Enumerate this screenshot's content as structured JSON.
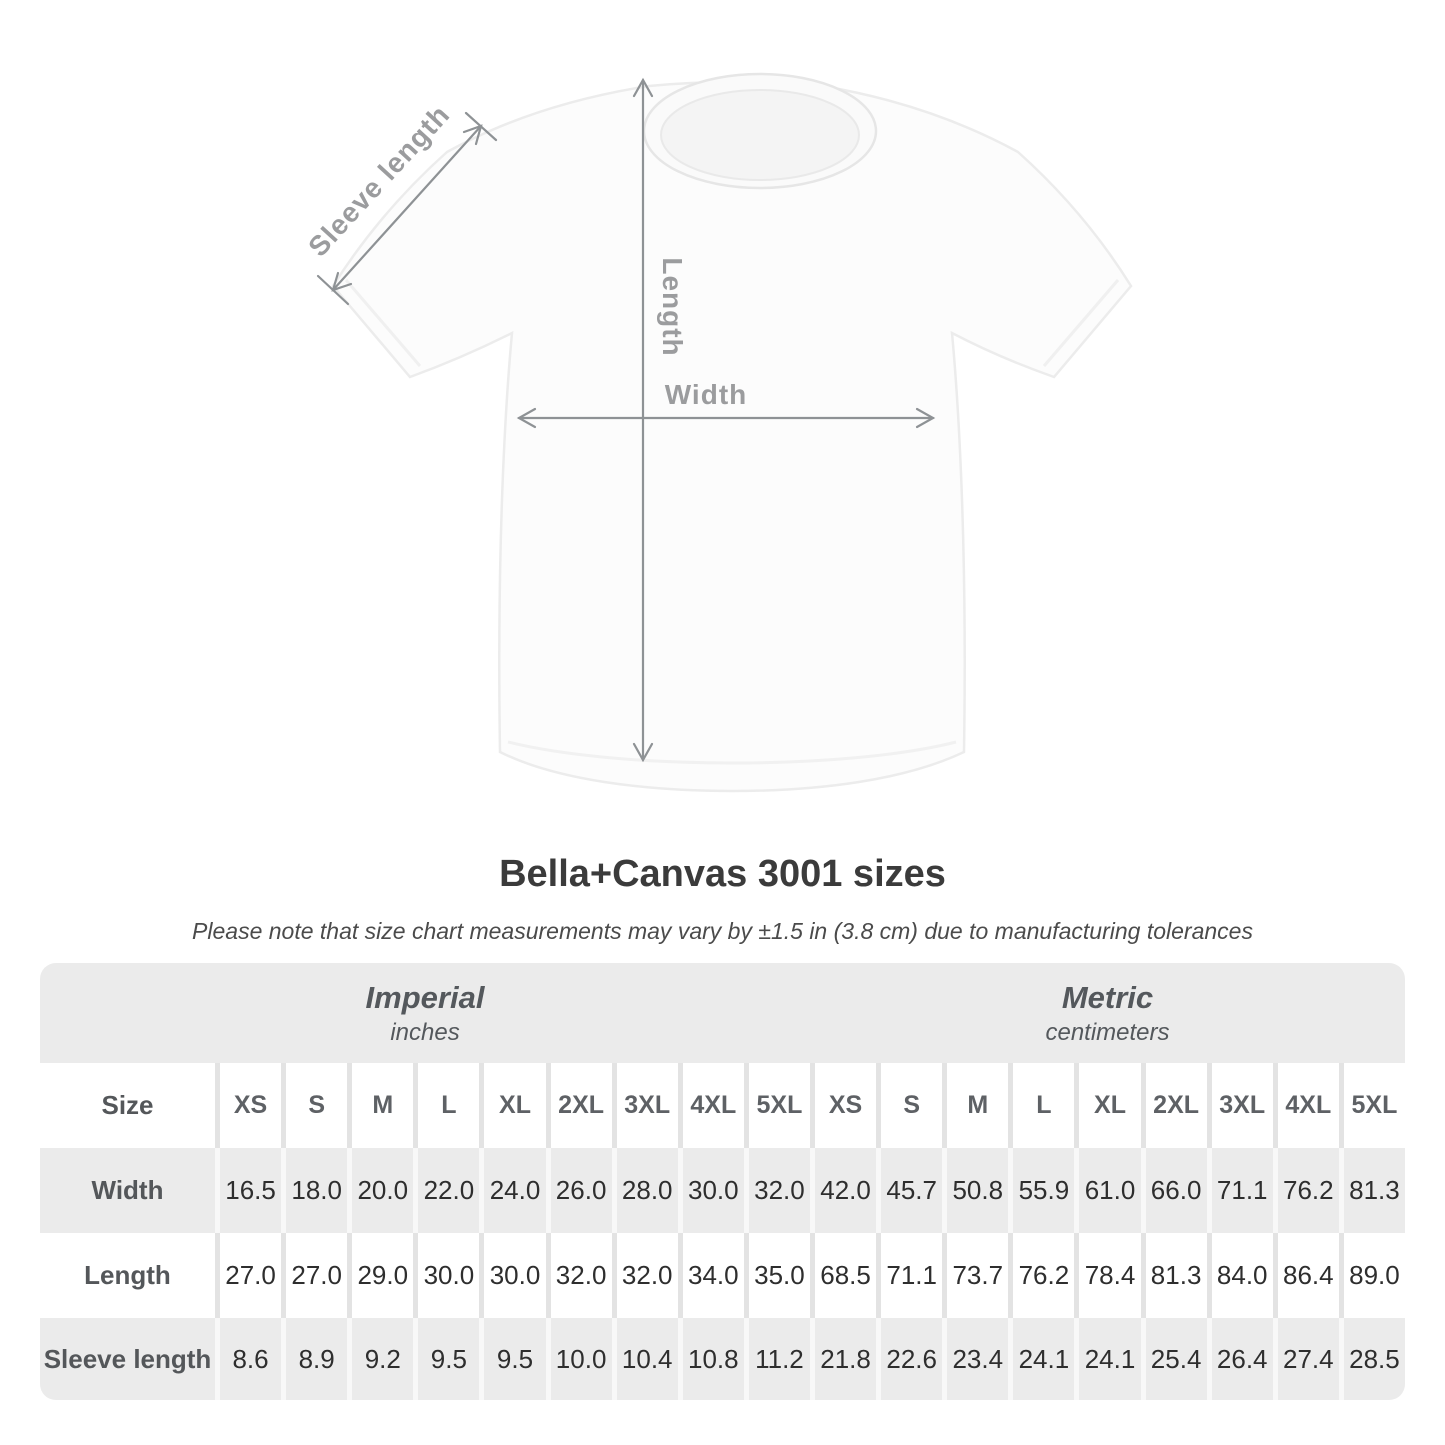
{
  "illustration": {
    "sleeve_label": "Sleeve length",
    "length_label": "Length",
    "width_label": "Width",
    "arrow_color": "#8e9295",
    "label_color": "#9b9c9e"
  },
  "header": {
    "title": "Bella+Canvas 3001 sizes",
    "note": "Please note that size chart measurements may vary by ±1.5 in (3.8 cm) due to manufacturing tolerances"
  },
  "table": {
    "imperial_label": "Imperial",
    "imperial_sub": "inches",
    "metric_label": "Metric",
    "metric_sub": "centimeters",
    "size_label": "Size",
    "sizes": [
      "XS",
      "S",
      "M",
      "L",
      "XL",
      "2XL",
      "3XL",
      "4XL",
      "5XL"
    ],
    "rows": [
      {
        "label": "Width",
        "imperial": [
          "16.5",
          "18.0",
          "20.0",
          "22.0",
          "24.0",
          "26.0",
          "28.0",
          "30.0",
          "32.0"
        ],
        "metric": [
          "42.0",
          "45.7",
          "50.8",
          "55.9",
          "61.0",
          "66.0",
          "71.1",
          "76.2",
          "81.3"
        ]
      },
      {
        "label": "Length",
        "imperial": [
          "27.0",
          "27.0",
          "29.0",
          "30.0",
          "30.0",
          "32.0",
          "32.0",
          "34.0",
          "35.0"
        ],
        "metric": [
          "68.5",
          "71.1",
          "73.7",
          "76.2",
          "78.4",
          "81.3",
          "84.0",
          "86.4",
          "89.0"
        ]
      },
      {
        "label": "Sleeve length",
        "imperial": [
          "8.6",
          "8.9",
          "9.2",
          "9.5",
          "9.5",
          "10.0",
          "10.4",
          "10.8",
          "11.2"
        ],
        "metric": [
          "21.8",
          "22.6",
          "23.4",
          "24.1",
          "24.1",
          "25.4",
          "26.4",
          "27.4",
          "28.5"
        ]
      }
    ]
  },
  "chart_data": {
    "type": "table",
    "title": "Bella+Canvas 3001 sizes",
    "note": "Please note that size chart measurements may vary by ±1.5 in (3.8 cm) due to manufacturing tolerances",
    "column_groups": [
      "Imperial (inches)",
      "Metric (centimeters)"
    ],
    "columns": [
      "XS",
      "S",
      "M",
      "L",
      "XL",
      "2XL",
      "3XL",
      "4XL",
      "5XL"
    ],
    "rows": [
      {
        "measure": "Width",
        "imperial_in": [
          16.5,
          18.0,
          20.0,
          22.0,
          24.0,
          26.0,
          28.0,
          30.0,
          32.0
        ],
        "metric_cm": [
          42.0,
          45.7,
          50.8,
          55.9,
          61.0,
          66.0,
          71.1,
          76.2,
          81.3
        ]
      },
      {
        "measure": "Length",
        "imperial_in": [
          27.0,
          27.0,
          29.0,
          30.0,
          30.0,
          32.0,
          32.0,
          34.0,
          35.0
        ],
        "metric_cm": [
          68.5,
          71.1,
          73.7,
          76.2,
          78.4,
          81.3,
          84.0,
          86.4,
          89.0
        ]
      },
      {
        "measure": "Sleeve length",
        "imperial_in": [
          8.6,
          8.9,
          9.2,
          9.5,
          9.5,
          10.0,
          10.4,
          10.8,
          11.2
        ],
        "metric_cm": [
          21.8,
          22.6,
          23.4,
          24.1,
          24.1,
          25.4,
          26.4,
          27.4,
          28.5
        ]
      }
    ]
  }
}
